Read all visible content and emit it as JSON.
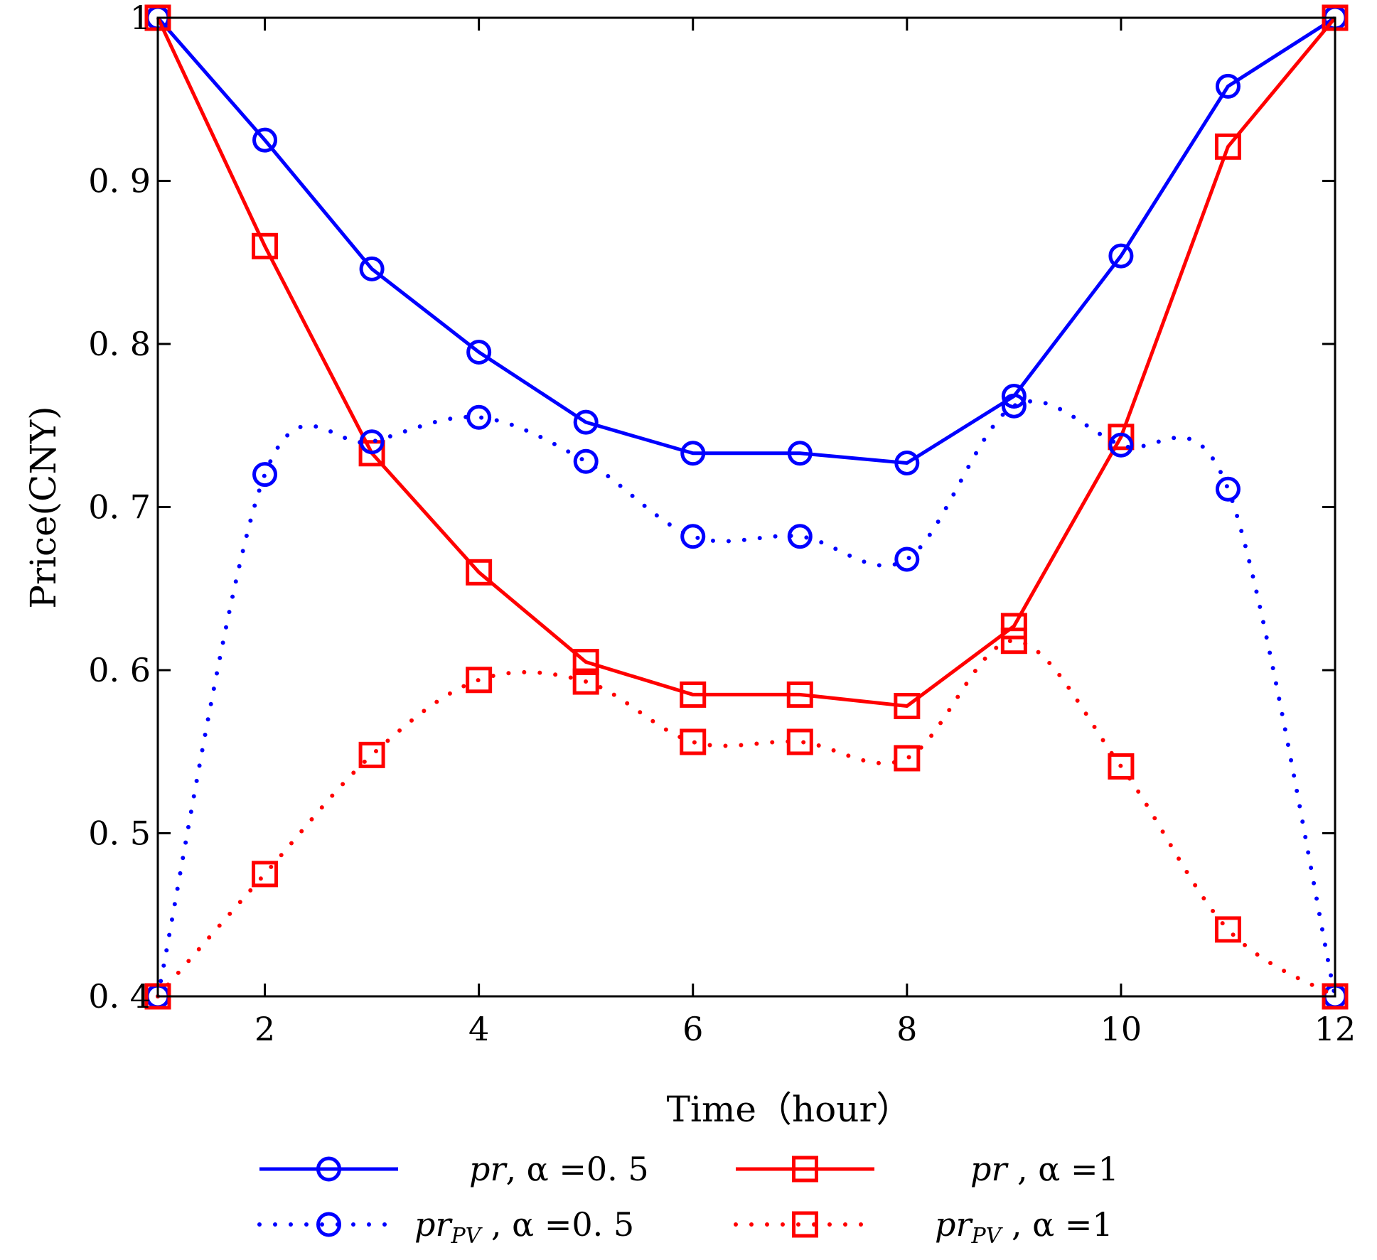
{
  "chart_data": {
    "type": "line",
    "xlabel": "Time（hour）",
    "ylabel": "Price(CNY)",
    "xlim": [
      1,
      12
    ],
    "ylim": [
      0.4,
      1.0
    ],
    "x_ticks": [
      2,
      4,
      6,
      8,
      10,
      12
    ],
    "y_ticks": [
      0.4,
      0.5,
      0.6,
      0.7,
      0.8,
      0.9,
      1.0
    ],
    "x_tick_labels": [
      "2",
      "4",
      "6",
      "8",
      "10",
      "12"
    ],
    "y_tick_labels": [
      "0. 4",
      "0. 5",
      "0. 6",
      "0. 7",
      "0. 8",
      "0. 9",
      "1"
    ],
    "grid": false,
    "legend_position": "bottom",
    "x": [
      1,
      2,
      3,
      4,
      5,
      6,
      7,
      8,
      9,
      10,
      11,
      12
    ],
    "series": [
      {
        "name_main": "pr",
        "name_sub": "",
        "name_rest": ",  α =0. 5",
        "color": "#0000ff",
        "line_style": "solid",
        "marker": "circle",
        "values": [
          1.0,
          0.925,
          0.846,
          0.795,
          0.752,
          0.733,
          0.733,
          0.727,
          0.768,
          0.854,
          0.958,
          1.0
        ]
      },
      {
        "name_main": "pr",
        "name_sub": "",
        "name_rest": " ,  α =1",
        "color": "#ff0000",
        "line_style": "solid",
        "marker": "square",
        "values": [
          1.0,
          0.86,
          0.733,
          0.66,
          0.605,
          0.585,
          0.585,
          0.578,
          0.627,
          0.743,
          0.921,
          1.0
        ]
      },
      {
        "name_main": "pr",
        "name_sub": "PV",
        "name_rest": " ,  α =0. 5",
        "color": "#0000ff",
        "line_style": "dotted",
        "marker": "circle",
        "values": [
          0.4,
          0.72,
          0.74,
          0.755,
          0.728,
          0.682,
          0.682,
          0.668,
          0.762,
          0.738,
          0.711,
          0.4
        ]
      },
      {
        "name_main": "pr",
        "name_sub": "PV",
        "name_rest": "  ,  α =1",
        "color": "#ff0000",
        "line_style": "dotted",
        "marker": "square",
        "values": [
          0.4,
          0.475,
          0.548,
          0.594,
          0.593,
          0.556,
          0.556,
          0.546,
          0.618,
          0.541,
          0.441,
          0.4
        ]
      }
    ]
  }
}
